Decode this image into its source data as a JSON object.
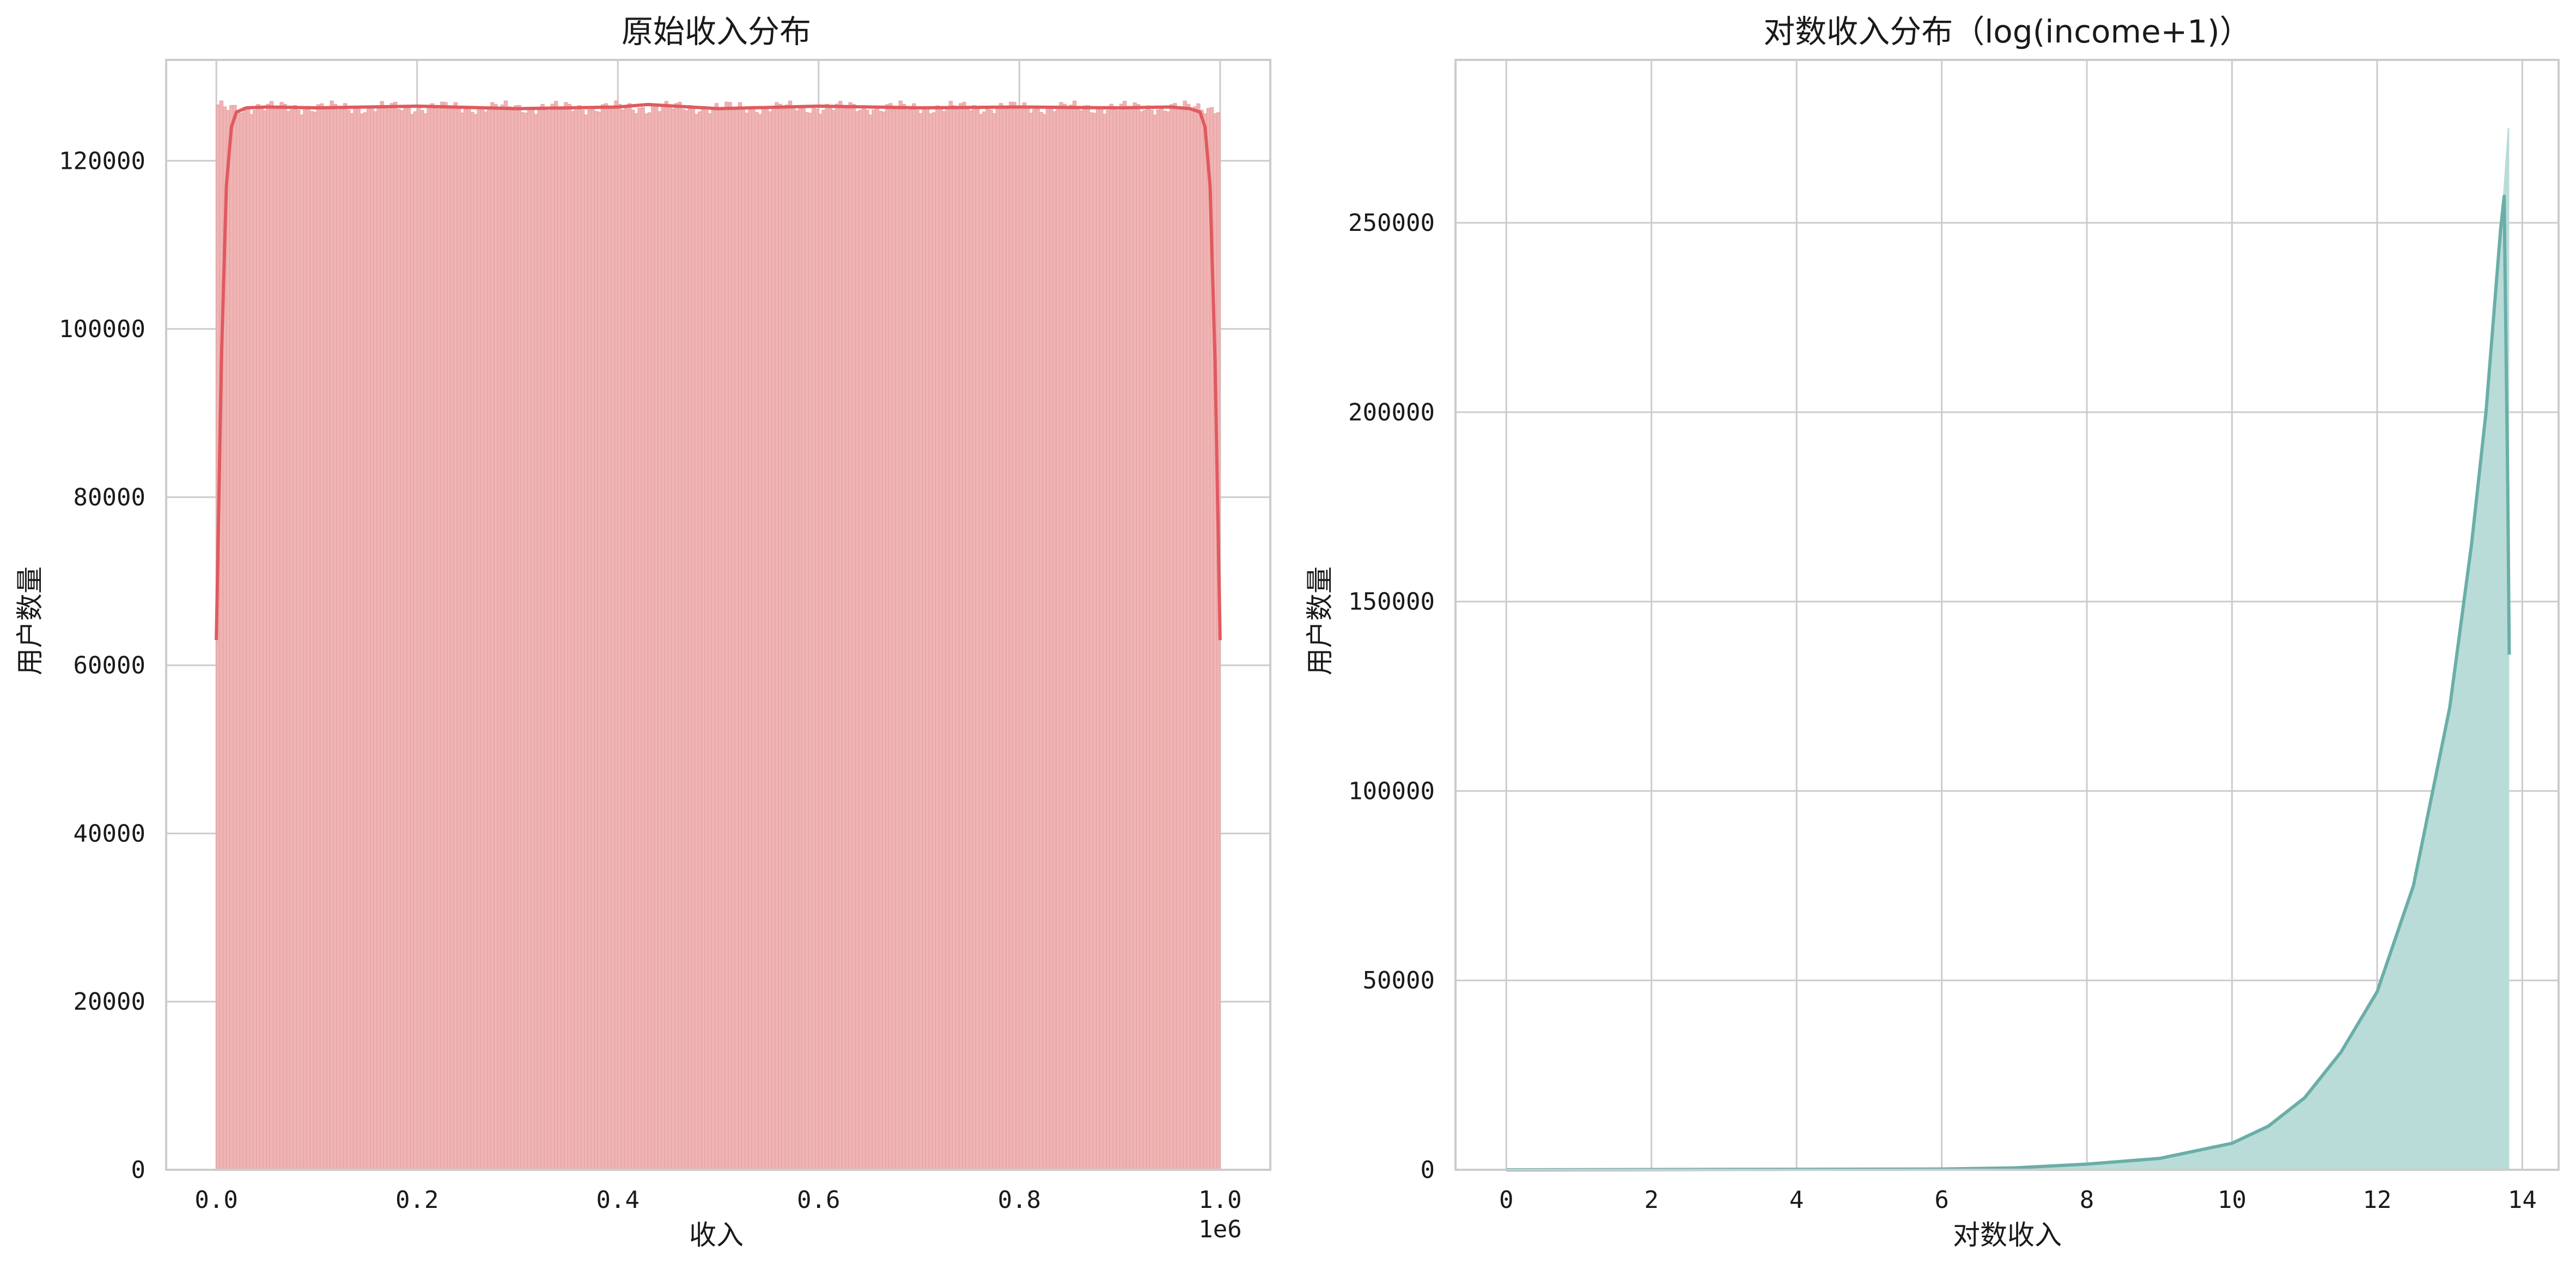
{
  "chart_data": [
    {
      "type": "histogram",
      "title": "原始收入分布",
      "xlabel": "收入",
      "ylabel": "用户数量",
      "x_offset_label": "1e6",
      "xlim": [
        -0.05,
        1.05
      ],
      "ylim": [
        0,
        132000
      ],
      "x_ticks": [
        0.0,
        0.2,
        0.4,
        0.6,
        0.8,
        1.0
      ],
      "x_tick_labels": [
        "0.0",
        "0.2",
        "0.4",
        "0.6",
        "0.8",
        "1.0"
      ],
      "y_ticks": [
        0,
        20000,
        40000,
        60000,
        80000,
        100000,
        120000
      ],
      "y_tick_labels": [
        "0",
        "20000",
        "40000",
        "60000",
        "80000",
        "100000",
        "120000"
      ],
      "grid": true,
      "bins": {
        "range": [
          0.0,
          1.0
        ],
        "approx_count": 300,
        "approx_height": 126300
      },
      "kde": {
        "x": [
          0.0,
          0.005,
          0.01,
          0.015,
          0.02,
          0.03,
          0.05,
          0.1,
          0.2,
          0.3,
          0.4,
          0.43,
          0.5,
          0.6,
          0.7,
          0.8,
          0.9,
          0.95,
          0.97,
          0.98,
          0.985,
          0.99,
          0.995,
          1.0
        ],
        "y": [
          63000,
          96000,
          117000,
          124000,
          125800,
          126300,
          126400,
          126300,
          126500,
          126200,
          126400,
          126700,
          126200,
          126500,
          126300,
          126400,
          126300,
          126400,
          126200,
          125800,
          124000,
          117000,
          96000,
          63000
        ]
      },
      "colors": {
        "fill": "#f0b4b4",
        "edge": "#e7a2a2",
        "kde": "#e05a5f"
      }
    },
    {
      "type": "area",
      "title": "对数收入分布（log(income+1)）",
      "xlabel": "对数收入",
      "ylabel": "用户数量",
      "xlim": [
        -0.7,
        14.5
      ],
      "ylim": [
        0,
        293000
      ],
      "x_ticks": [
        0,
        2,
        4,
        6,
        8,
        10,
        12,
        14
      ],
      "x_tick_labels": [
        "0",
        "2",
        "4",
        "6",
        "8",
        "10",
        "12",
        "14"
      ],
      "y_ticks": [
        0,
        50000,
        100000,
        150000,
        200000,
        250000
      ],
      "y_tick_labels": [
        "0",
        "50000",
        "100000",
        "150000",
        "200000",
        "250000"
      ],
      "grid": true,
      "hist_envelope": {
        "x": [
          0,
          6,
          7,
          8,
          9,
          10,
          10.5,
          11,
          11.5,
          12,
          12.5,
          13,
          13.3,
          13.5,
          13.7,
          13.8,
          13.82
        ],
        "y": [
          0,
          200,
          500,
          1500,
          3000,
          7000,
          11500,
          19000,
          31000,
          47000,
          75000,
          122000,
          165000,
          200000,
          248000,
          275000,
          275000
        ]
      },
      "kde": {
        "x": [
          0,
          6,
          7,
          8,
          9,
          10,
          10.5,
          11,
          11.5,
          12,
          12.5,
          13,
          13.3,
          13.5,
          13.7,
          13.75,
          13.8,
          13.82
        ],
        "y": [
          0,
          200,
          500,
          1500,
          3000,
          7000,
          11500,
          19000,
          31000,
          47000,
          75000,
          122000,
          165000,
          200000,
          248000,
          257000,
          180000,
          136000
        ]
      },
      "colors": {
        "fill": "#b9dcd9",
        "kde": "#6aaea7"
      }
    }
  ]
}
